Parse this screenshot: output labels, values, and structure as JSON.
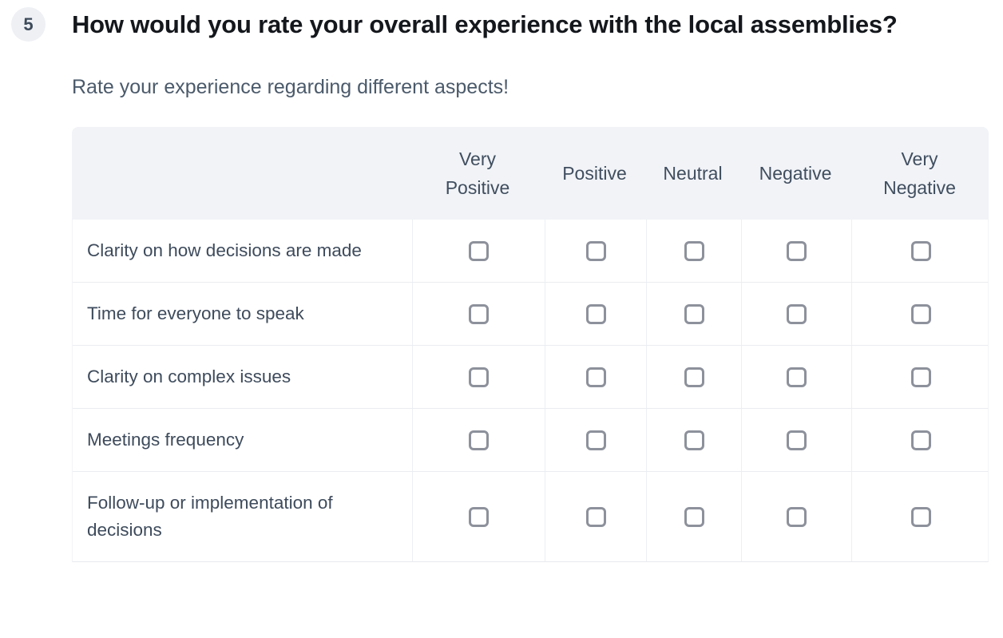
{
  "question": {
    "number": "5",
    "title": "How would you rate your overall experience with the local assemblies?",
    "subtitle": "Rate your experience regarding different aspects!"
  },
  "matrix": {
    "columns": [
      "Very Positive",
      "Positive",
      "Neutral",
      "Negative",
      "Very Negative"
    ],
    "rows": [
      {
        "label": "Clarity on how decisions are made",
        "checked": [
          false,
          false,
          false,
          false,
          false
        ]
      },
      {
        "label": "Time for everyone to speak",
        "checked": [
          false,
          false,
          false,
          false,
          false
        ]
      },
      {
        "label": "Clarity on complex issues",
        "checked": [
          false,
          false,
          false,
          false,
          false
        ]
      },
      {
        "label": "Meetings frequency",
        "checked": [
          false,
          false,
          false,
          false,
          false
        ]
      },
      {
        "label": "Follow-up or implementation of decisions",
        "checked": [
          false,
          false,
          false,
          false,
          false
        ]
      }
    ]
  },
  "colors": {
    "header_background": "#f1f3f7",
    "badge_background": "#eef0f4",
    "title_text": "#14171c",
    "subtitle_text": "#4b5a6b",
    "table_text": "#3e4b5c",
    "checkbox_border": "#8d919b",
    "row_separator": "#eaecf0"
  }
}
